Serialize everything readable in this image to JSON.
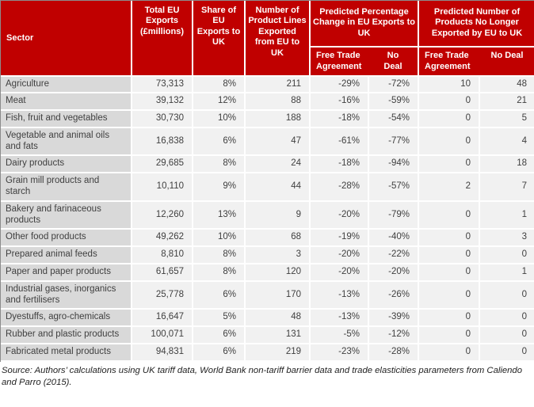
{
  "colors": {
    "header_red": "#c00000",
    "sector_cell_bg": "#d9d9d9",
    "data_cell_bg": "#f1f1f1",
    "header_text": "#ffffff",
    "body_text": "#404040"
  },
  "table": {
    "headers": {
      "sector": "Sector",
      "total": "Total EU Exports (£millions)",
      "share": "Share of EU Exports to UK",
      "lines": "Number of Product Lines Exported from EU to UK",
      "group_pct": "Predicted Percentage Change in EU Exports to UK",
      "group_num": "Predicted Number of Products No Longer Exported by EU to UK",
      "fta": "Free Trade Agreement",
      "no_deal": "No Deal"
    },
    "rows": [
      {
        "sector": "Agriculture",
        "total": "73,313",
        "share": "8%",
        "lines": "211",
        "pct_fta": "-29%",
        "pct_nd": "-72%",
        "num_fta": "10",
        "num_nd": "48"
      },
      {
        "sector": "Meat",
        "total": "39,132",
        "share": "12%",
        "lines": "88",
        "pct_fta": "-16%",
        "pct_nd": "-59%",
        "num_fta": "0",
        "num_nd": "21"
      },
      {
        "sector": "Fish, fruit and vegetables",
        "total": "30,730",
        "share": "10%",
        "lines": "188",
        "pct_fta": "-18%",
        "pct_nd": "-54%",
        "num_fta": "0",
        "num_nd": "5"
      },
      {
        "sector": "Vegetable and animal oils and fats",
        "total": "16,838",
        "share": "6%",
        "lines": "47",
        "pct_fta": "-61%",
        "pct_nd": "-77%",
        "num_fta": "0",
        "num_nd": "4"
      },
      {
        "sector": "Dairy products",
        "total": "29,685",
        "share": "8%",
        "lines": "24",
        "pct_fta": "-18%",
        "pct_nd": "-94%",
        "num_fta": "0",
        "num_nd": "18"
      },
      {
        "sector": "Grain mill products and starch",
        "total": "10,110",
        "share": "9%",
        "lines": "44",
        "pct_fta": "-28%",
        "pct_nd": "-57%",
        "num_fta": "2",
        "num_nd": "7"
      },
      {
        "sector": "Bakery and farinaceous products",
        "total": "12,260",
        "share": "13%",
        "lines": "9",
        "pct_fta": "-20%",
        "pct_nd": "-79%",
        "num_fta": "0",
        "num_nd": "1"
      },
      {
        "sector": "Other food products",
        "total": "49,262",
        "share": "10%",
        "lines": "68",
        "pct_fta": "-19%",
        "pct_nd": "-40%",
        "num_fta": "0",
        "num_nd": "3"
      },
      {
        "sector": "Prepared animal feeds",
        "total": "8,810",
        "share": "8%",
        "lines": "3",
        "pct_fta": "-20%",
        "pct_nd": "-22%",
        "num_fta": "0",
        "num_nd": "0"
      },
      {
        "sector": "Paper and paper products",
        "total": "61,657",
        "share": "8%",
        "lines": "120",
        "pct_fta": "-20%",
        "pct_nd": "-20%",
        "num_fta": "0",
        "num_nd": "1"
      },
      {
        "sector": "Industrial gases, inorganics and fertilisers",
        "total": "25,778",
        "share": "6%",
        "lines": "170",
        "pct_fta": "-13%",
        "pct_nd": "-26%",
        "num_fta": "0",
        "num_nd": "0"
      },
      {
        "sector": "Dyestuffs, agro-chemicals",
        "total": "16,647",
        "share": "5%",
        "lines": "48",
        "pct_fta": "-13%",
        "pct_nd": "-39%",
        "num_fta": "0",
        "num_nd": "0"
      },
      {
        "sector": "Rubber and plastic products",
        "total": "100,071",
        "share": "6%",
        "lines": "131",
        "pct_fta": "-5%",
        "pct_nd": "-12%",
        "num_fta": "0",
        "num_nd": "0"
      },
      {
        "sector": "Fabricated metal products",
        "total": "94,831",
        "share": "6%",
        "lines": "219",
        "pct_fta": "-23%",
        "pct_nd": "-28%",
        "num_fta": "0",
        "num_nd": "0"
      }
    ]
  },
  "source_note": "Source: Authors’ calculations using UK tariff data, World Bank non-tariff barrier data and trade elasticities parameters from Caliendo and Parro (2015)."
}
